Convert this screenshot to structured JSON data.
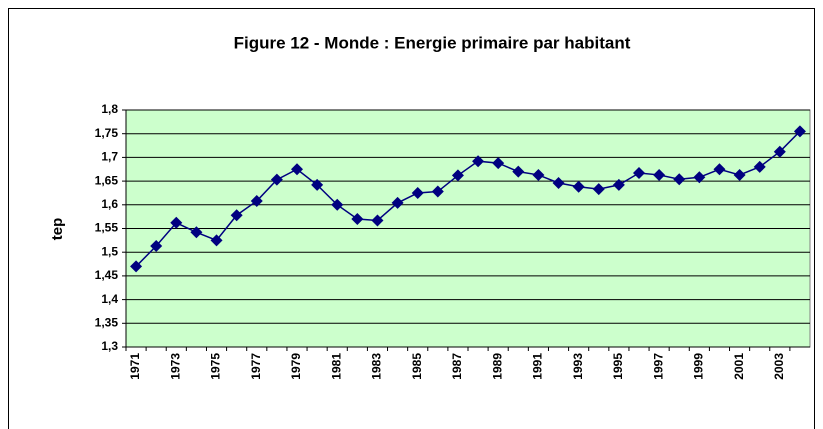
{
  "chart_data": {
    "type": "line",
    "title": "Figure 12 - Monde : Energie primaire par habitant",
    "y_label": "tep",
    "categories": [
      "1971",
      null,
      "1973",
      null,
      "1975",
      null,
      "1977",
      null,
      "1979",
      null,
      "1981",
      null,
      "1983",
      null,
      "1985",
      null,
      "1987",
      null,
      "1989",
      null,
      "1991",
      null,
      "1993",
      null,
      "1995",
      null,
      "1997",
      null,
      "1999",
      null,
      "2001",
      null,
      "2003",
      null
    ],
    "series": [
      {
        "name": "tep",
        "color": "#000080",
        "values": [
          1.47,
          1.513,
          1.562,
          1.542,
          1.525,
          1.578,
          1.608,
          1.653,
          1.675,
          1.642,
          1.6,
          1.57,
          1.567,
          1.604,
          1.625,
          1.628,
          1.662,
          1.692,
          1.688,
          1.67,
          1.663,
          1.646,
          1.638,
          1.633,
          1.642,
          1.667,
          1.663,
          1.654,
          1.658,
          1.675,
          1.663,
          1.68,
          1.712,
          1.755
        ]
      }
    ],
    "ylim": [
      1.3,
      1.8
    ],
    "yticks": [
      {
        "value": 1.3,
        "label": "1,3"
      },
      {
        "value": 1.35,
        "label": "1,35"
      },
      {
        "value": 1.4,
        "label": "1,4"
      },
      {
        "value": 1.45,
        "label": "1,45"
      },
      {
        "value": 1.5,
        "label": "1,5"
      },
      {
        "value": 1.55,
        "label": "1,55"
      },
      {
        "value": 1.6,
        "label": "1,6"
      },
      {
        "value": 1.65,
        "label": "1,65"
      },
      {
        "value": 1.7,
        "label": "1,7"
      },
      {
        "value": 1.75,
        "label": "1,75"
      },
      {
        "value": 1.8,
        "label": "1,8"
      }
    ],
    "grid": true,
    "plot_background": "#ccffcc"
  }
}
